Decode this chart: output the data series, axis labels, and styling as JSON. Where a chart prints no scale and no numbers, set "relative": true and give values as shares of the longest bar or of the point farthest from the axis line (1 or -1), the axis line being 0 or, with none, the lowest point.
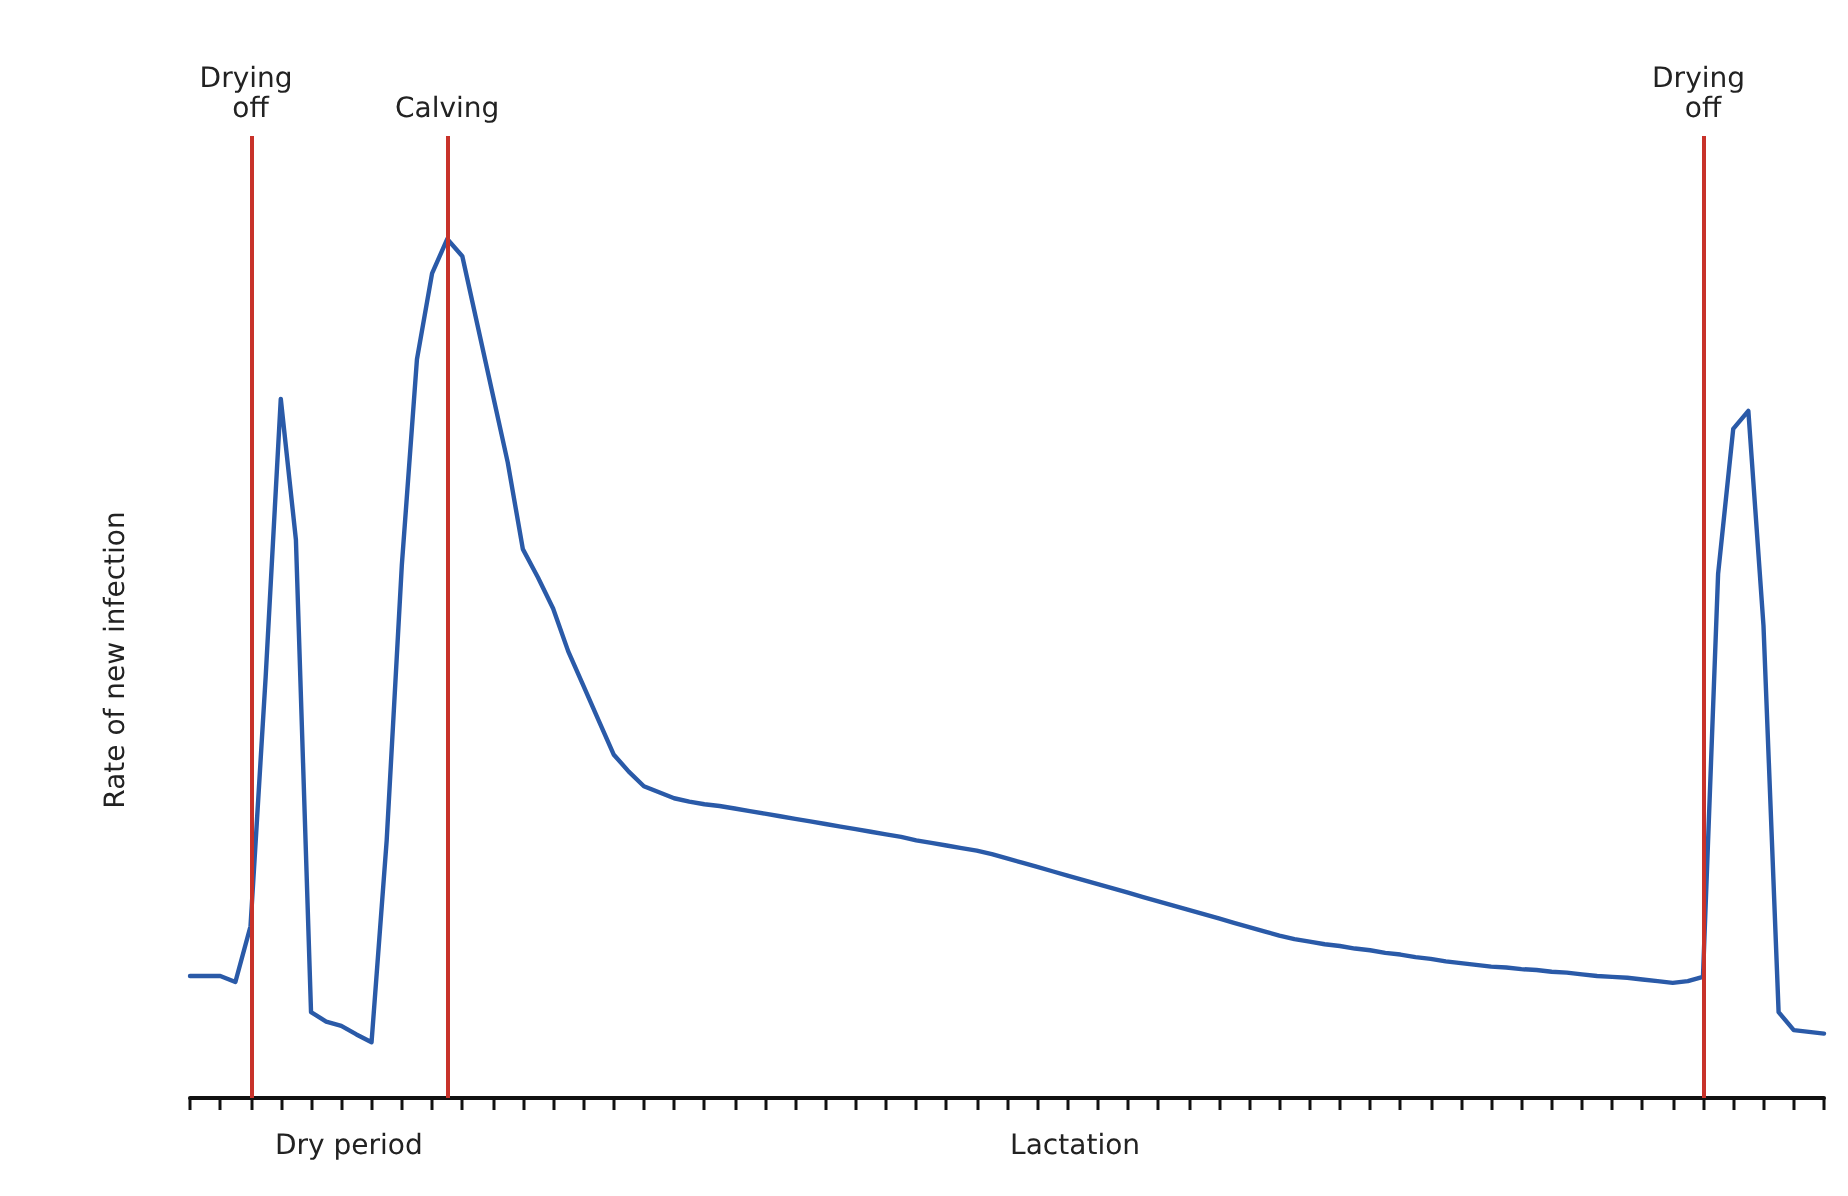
{
  "chart_data": {
    "type": "line",
    "relative": true,
    "ylabel": "Rate of new infection",
    "categories": [
      null,
      null,
      null,
      null,
      null,
      null,
      null,
      null,
      null,
      null,
      null,
      null,
      null,
      null,
      null,
      null,
      null,
      null,
      null,
      null,
      null,
      null,
      null,
      null,
      null,
      null,
      null,
      null,
      null,
      null,
      null,
      null,
      null,
      null,
      null,
      null,
      null,
      null,
      null,
      null,
      null,
      null,
      null,
      null,
      null,
      null,
      null,
      null,
      null,
      null,
      null,
      null,
      null,
      null,
      null,
      null,
      null,
      null,
      null,
      null,
      null,
      null,
      null,
      null,
      null,
      null,
      null,
      null,
      null,
      null,
      null,
      null,
      null,
      null,
      null,
      null,
      null,
      null,
      null,
      null,
      null,
      null,
      null,
      null,
      null,
      null,
      null,
      null,
      null,
      null,
      null,
      null,
      null,
      null,
      null,
      null,
      null,
      null,
      null,
      null,
      null,
      null,
      null,
      null,
      null,
      null,
      null,
      null,
      null
    ],
    "grid": false,
    "marker": "none",
    "line_style": "solid",
    "series": [
      {
        "color": "#2a5aa8",
        "values": [
          0.142,
          0.142,
          0.142,
          0.135,
          0.2,
          0.49,
          0.814,
          0.65,
          0.1,
          0.089,
          0.084,
          0.074,
          0.065,
          0.3,
          0.62,
          0.86,
          0.96,
          1,
          0.98,
          0.9,
          0.82,
          0.74,
          0.639,
          0.606,
          0.57,
          0.52,
          0.48,
          0.44,
          0.4,
          0.38,
          0.363,
          0.356,
          0.349,
          0.345,
          0.342,
          0.34,
          0.337,
          0.334,
          0.331,
          0.328,
          0.325,
          0.322,
          0.319,
          0.316,
          0.313,
          0.31,
          0.307,
          0.304,
          0.3,
          0.297,
          0.294,
          0.291,
          0.288,
          0.284,
          0.279,
          0.274,
          0.269,
          0.264,
          0.259,
          0.254,
          0.249,
          0.244,
          0.239,
          0.234,
          0.229,
          0.224,
          0.219,
          0.214,
          0.209,
          0.204,
          0.199,
          0.194,
          0.189,
          0.185,
          0.182,
          0.179,
          0.177,
          0.174,
          0.172,
          0.169,
          0.167,
          0.164,
          0.162,
          0.159,
          0.157,
          0.155,
          0.153,
          0.152,
          0.15,
          0.149,
          0.147,
          0.146,
          0.144,
          0.142,
          0.141,
          0.14,
          0.138,
          0.136,
          0.134,
          0.136,
          0.141,
          0.61,
          0.779,
          0.8,
          0.55,
          0.1,
          0.079,
          0.077,
          0.075
        ]
      }
    ],
    "annotations": [
      "Drying off",
      "Calving",
      "Drying off",
      "Dry period",
      "Lactation"
    ]
  }
}
